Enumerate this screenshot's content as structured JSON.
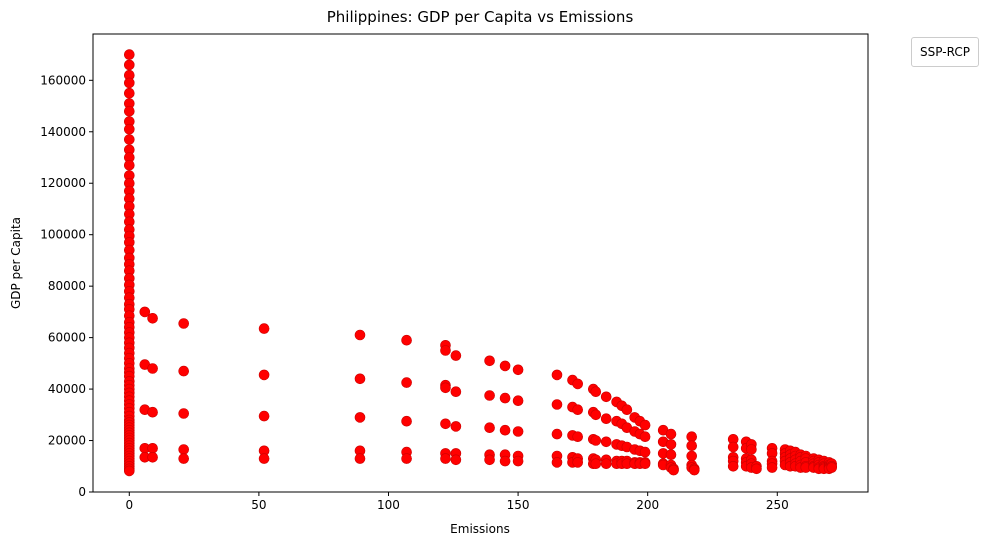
{
  "chart_data": {
    "type": "scatter",
    "title": "Philippines: GDP per Capita vs Emissions",
    "xlabel": "Emissions",
    "ylabel": "GDP per Capita",
    "xlim": [
      -14,
      285
    ],
    "ylim": [
      0,
      178000
    ],
    "xticks": [
      0,
      50,
      100,
      150,
      200,
      250
    ],
    "yticks": [
      0,
      20000,
      40000,
      60000,
      80000,
      100000,
      120000,
      140000,
      160000
    ],
    "grid": false,
    "legend": {
      "title": "SSP-RCP",
      "placement": "outside top-right"
    },
    "marker_color": "#ff0000",
    "marker_edge_color": "#cc0000",
    "series": [
      {
        "points": [
          [
            0,
            170000
          ],
          [
            0,
            166000
          ],
          [
            0,
            162000
          ],
          [
            0,
            159000
          ],
          [
            0,
            155000
          ],
          [
            0,
            151000
          ],
          [
            0,
            148000
          ],
          [
            0,
            144000
          ],
          [
            0,
            141000
          ],
          [
            0,
            137000
          ],
          [
            0,
            133000
          ],
          [
            0,
            130000
          ],
          [
            0,
            127000
          ],
          [
            0,
            123000
          ],
          [
            0,
            120000
          ],
          [
            0,
            117000
          ],
          [
            0,
            114000
          ],
          [
            0,
            111000
          ],
          [
            0,
            108000
          ],
          [
            0,
            105000
          ],
          [
            0,
            102000
          ],
          [
            0,
            99500
          ],
          [
            0,
            97000
          ],
          [
            0,
            94000
          ],
          [
            0,
            91000
          ],
          [
            0,
            88500
          ],
          [
            0,
            86000
          ],
          [
            0,
            83000
          ],
          [
            0,
            80500
          ],
          [
            0,
            78000
          ],
          [
            0,
            75500
          ],
          [
            0,
            73000
          ],
          [
            0,
            71000
          ],
          [
            0,
            68500
          ],
          [
            0,
            66000
          ],
          [
            0,
            64000
          ],
          [
            0,
            62000
          ],
          [
            0,
            60000
          ],
          [
            0,
            58000
          ],
          [
            0,
            56000
          ],
          [
            0,
            54000
          ],
          [
            0,
            52000
          ],
          [
            0,
            50000
          ],
          [
            0,
            48000
          ],
          [
            0,
            46500
          ],
          [
            0,
            45000
          ],
          [
            0,
            43000
          ],
          [
            0,
            41500
          ],
          [
            0,
            40000
          ],
          [
            0,
            38500
          ],
          [
            0,
            37000
          ],
          [
            0,
            35500
          ],
          [
            0,
            34000
          ],
          [
            0,
            32500
          ],
          [
            0,
            31000
          ],
          [
            0,
            29500
          ],
          [
            0,
            28000
          ],
          [
            0,
            27000
          ],
          [
            0,
            26000
          ],
          [
            0,
            25000
          ],
          [
            0,
            24000
          ],
          [
            0,
            23000
          ],
          [
            0,
            22000
          ],
          [
            0,
            21000
          ],
          [
            0,
            20000
          ],
          [
            0,
            19000
          ],
          [
            0,
            18000
          ],
          [
            0,
            17000
          ],
          [
            0,
            16000
          ],
          [
            0,
            15000
          ],
          [
            0,
            14000
          ],
          [
            0,
            13000
          ],
          [
            0,
            12000
          ],
          [
            0,
            11000
          ],
          [
            0,
            10000
          ],
          [
            0,
            9000
          ],
          [
            0,
            8200
          ],
          [
            6,
            70000
          ],
          [
            6,
            49500
          ],
          [
            6,
            32000
          ],
          [
            6,
            17000
          ],
          [
            6,
            13500
          ],
          [
            9,
            67500
          ],
          [
            9,
            48000
          ],
          [
            9,
            31000
          ],
          [
            9,
            17000
          ],
          [
            9,
            13500
          ],
          [
            21,
            65500
          ],
          [
            21,
            47000
          ],
          [
            21,
            30500
          ],
          [
            21,
            16500
          ],
          [
            21,
            13000
          ],
          [
            52,
            63500
          ],
          [
            52,
            45500
          ],
          [
            52,
            29500
          ],
          [
            52,
            16000
          ],
          [
            52,
            13000
          ],
          [
            89,
            61000
          ],
          [
            89,
            44000
          ],
          [
            89,
            29000
          ],
          [
            89,
            16000
          ],
          [
            89,
            13000
          ],
          [
            107,
            59000
          ],
          [
            107,
            42500
          ],
          [
            107,
            27500
          ],
          [
            107,
            15500
          ],
          [
            107,
            13000
          ],
          [
            122,
            57000
          ],
          [
            122,
            55000
          ],
          [
            122,
            41500
          ],
          [
            122,
            40500
          ],
          [
            122,
            26500
          ],
          [
            122,
            15000
          ],
          [
            122,
            13000
          ],
          [
            126,
            53000
          ],
          [
            126,
            39000
          ],
          [
            126,
            25500
          ],
          [
            126,
            15000
          ],
          [
            126,
            12500
          ],
          [
            139,
            51000
          ],
          [
            139,
            37500
          ],
          [
            139,
            25000
          ],
          [
            139,
            14500
          ],
          [
            139,
            12500
          ],
          [
            145,
            49000
          ],
          [
            145,
            36500
          ],
          [
            145,
            24000
          ],
          [
            145,
            14500
          ],
          [
            145,
            12000
          ],
          [
            150,
            47500
          ],
          [
            150,
            35500
          ],
          [
            150,
            23500
          ],
          [
            150,
            14000
          ],
          [
            150,
            12000
          ],
          [
            165,
            45500
          ],
          [
            165,
            34000
          ],
          [
            165,
            22500
          ],
          [
            165,
            14000
          ],
          [
            165,
            11500
          ],
          [
            171,
            43500
          ],
          [
            171,
            33000
          ],
          [
            171,
            22000
          ],
          [
            171,
            13500
          ],
          [
            171,
            11500
          ],
          [
            173,
            42000
          ],
          [
            173,
            32000
          ],
          [
            173,
            21500
          ],
          [
            173,
            13000
          ],
          [
            173,
            11500
          ],
          [
            179,
            40000
          ],
          [
            179,
            31000
          ],
          [
            179,
            20500
          ],
          [
            179,
            13000
          ],
          [
            179,
            11000
          ],
          [
            180,
            39000
          ],
          [
            180,
            30000
          ],
          [
            180,
            20000
          ],
          [
            180,
            12500
          ],
          [
            180,
            11000
          ],
          [
            184,
            37000
          ],
          [
            184,
            28500
          ],
          [
            184,
            19500
          ],
          [
            184,
            12500
          ],
          [
            184,
            11000
          ],
          [
            188,
            35000
          ],
          [
            188,
            27500
          ],
          [
            188,
            18500
          ],
          [
            188,
            12000
          ],
          [
            188,
            11000
          ],
          [
            190,
            33500
          ],
          [
            190,
            26500
          ],
          [
            190,
            18000
          ],
          [
            190,
            12000
          ],
          [
            190,
            11000
          ],
          [
            192,
            32000
          ],
          [
            192,
            25000
          ],
          [
            192,
            17500
          ],
          [
            192,
            12000
          ],
          [
            192,
            11000
          ],
          [
            195,
            29000
          ],
          [
            195,
            23500
          ],
          [
            195,
            16500
          ],
          [
            195,
            11500
          ],
          [
            195,
            11000
          ],
          [
            197,
            27500
          ],
          [
            197,
            22500
          ],
          [
            197,
            16000
          ],
          [
            197,
            11500
          ],
          [
            197,
            11000
          ],
          [
            199,
            26000
          ],
          [
            199,
            21500
          ],
          [
            199,
            15500
          ],
          [
            199,
            11500
          ],
          [
            199,
            11000
          ],
          [
            206,
            24000
          ],
          [
            206,
            19500
          ],
          [
            206,
            15000
          ],
          [
            206,
            11000
          ],
          [
            206,
            10500
          ],
          [
            209,
            22500
          ],
          [
            209,
            18500
          ],
          [
            209,
            14500
          ],
          [
            209,
            10500
          ],
          [
            209,
            9500
          ],
          [
            210,
            9000
          ],
          [
            210,
            8500
          ],
          [
            217,
            21500
          ],
          [
            217,
            18000
          ],
          [
            217,
            14000
          ],
          [
            217,
            10500
          ],
          [
            217,
            9500
          ],
          [
            218,
            9000
          ],
          [
            218,
            8500
          ],
          [
            233,
            20500
          ],
          [
            233,
            17500
          ],
          [
            233,
            13500
          ],
          [
            233,
            12000
          ],
          [
            233,
            10000
          ],
          [
            238,
            19500
          ],
          [
            238,
            17000
          ],
          [
            238,
            13000
          ],
          [
            238,
            11500
          ],
          [
            238,
            10000
          ],
          [
            240,
            18500
          ],
          [
            240,
            16500
          ],
          [
            240,
            12500
          ],
          [
            240,
            11000
          ],
          [
            240,
            9500
          ],
          [
            242,
            10000
          ],
          [
            242,
            9000
          ],
          [
            248,
            17000
          ],
          [
            248,
            15000
          ],
          [
            248,
            12000
          ],
          [
            248,
            11000
          ],
          [
            248,
            9500
          ],
          [
            253,
            16500
          ],
          [
            253,
            15000
          ],
          [
            253,
            13500
          ],
          [
            253,
            12000
          ],
          [
            253,
            10500
          ],
          [
            255,
            16000
          ],
          [
            255,
            14500
          ],
          [
            255,
            13000
          ],
          [
            255,
            11500
          ],
          [
            255,
            10000
          ],
          [
            257,
            15500
          ],
          [
            257,
            14000
          ],
          [
            257,
            12500
          ],
          [
            257,
            11000
          ],
          [
            257,
            10000
          ],
          [
            259,
            14500
          ],
          [
            259,
            13500
          ],
          [
            259,
            12000
          ],
          [
            259,
            10500
          ],
          [
            259,
            9500
          ],
          [
            261,
            14000
          ],
          [
            261,
            13000
          ],
          [
            261,
            11500
          ],
          [
            261,
            10000
          ],
          [
            261,
            9500
          ],
          [
            264,
            13000
          ],
          [
            264,
            12000
          ],
          [
            264,
            11000
          ],
          [
            264,
            10000
          ],
          [
            264,
            9500
          ],
          [
            266,
            12500
          ],
          [
            266,
            11500
          ],
          [
            266,
            10500
          ],
          [
            266,
            9500
          ],
          [
            266,
            9000
          ],
          [
            268,
            12000
          ],
          [
            268,
            11000
          ],
          [
            268,
            10000
          ],
          [
            268,
            9500
          ],
          [
            268,
            9000
          ],
          [
            270,
            11500
          ],
          [
            270,
            10500
          ],
          [
            270,
            10000
          ],
          [
            270,
            9500
          ],
          [
            270,
            9000
          ],
          [
            271,
            11000
          ],
          [
            271,
            10000
          ],
          [
            271,
            9500
          ]
        ]
      }
    ]
  }
}
